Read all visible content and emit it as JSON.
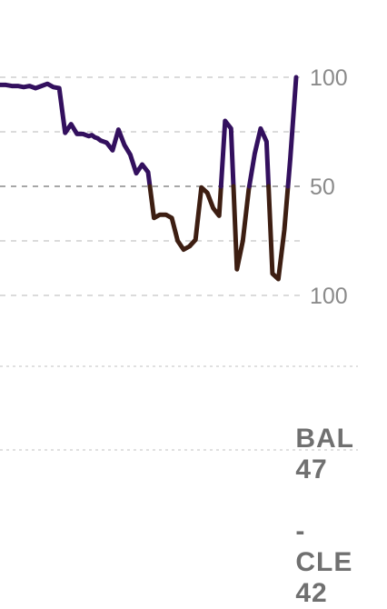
{
  "chart_data": {
    "type": "line",
    "title": "",
    "xlabel": "",
    "ylabel": "",
    "y_axis_ticks": [
      "100",
      "50",
      "100"
    ],
    "ylim": [
      -100,
      100
    ],
    "midline": 0,
    "grid": true,
    "colors": {
      "above": "#33105E",
      "below": "#3D1E12",
      "grid": "#cfcfcf",
      "midline": "#8a8a8a"
    },
    "series": [
      {
        "x": [
          0,
          2,
          4,
          6,
          8,
          10,
          12,
          14,
          16,
          18,
          20,
          22,
          24,
          26,
          28,
          30,
          31,
          32,
          33,
          34,
          35,
          36,
          38,
          40,
          42,
          44,
          46,
          48,
          50,
          52,
          54,
          56,
          58,
          60,
          62,
          64,
          66,
          68,
          70,
          72,
          74,
          76,
          78,
          80,
          82,
          84,
          86,
          88,
          90,
          92,
          94,
          96,
          98,
          100
        ],
        "values": [
          93,
          93,
          92,
          92,
          91,
          92,
          90,
          92,
          94,
          91,
          90,
          49,
          57,
          48,
          48,
          46,
          47,
          45,
          44,
          42,
          41,
          40,
          33,
          52,
          38,
          29,
          12,
          20,
          13,
          -29,
          -26,
          -26,
          -29,
          -50,
          -58,
          -55,
          -49,
          -1,
          -6,
          -20,
          -27,
          60,
          53,
          -76,
          -50,
          -3,
          30,
          53,
          41,
          -80,
          -85,
          -40,
          25,
          100
        ]
      }
    ]
  },
  "score": {
    "team1": "BAL",
    "team1_score": "47",
    "separator": "-",
    "team2": "CLE",
    "team2_score": "42"
  }
}
